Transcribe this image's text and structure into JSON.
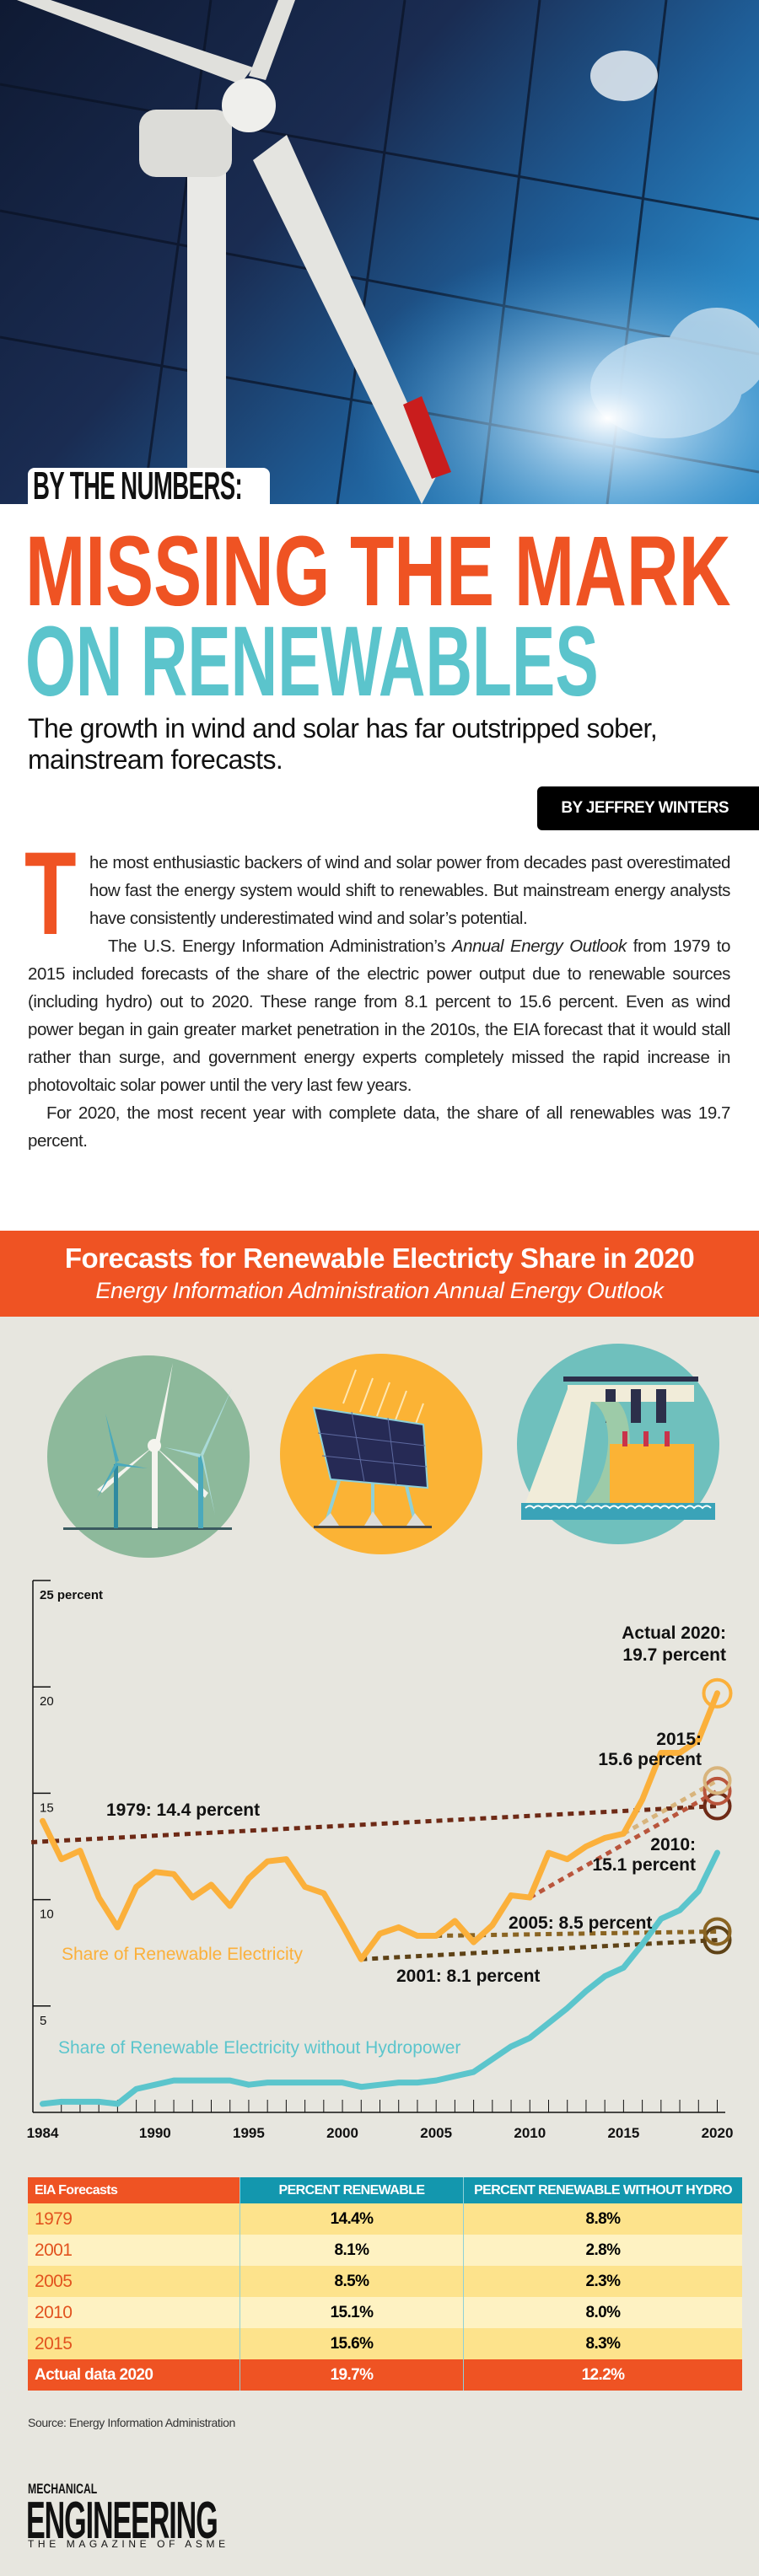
{
  "header": {
    "section_tab": "BY THE NUMBERS:",
    "title_line1": "MISSING THE MARK",
    "title_line2": "ON RENEWABLES",
    "subtitle": "The growth in wind and solar has far outstripped sober, mainstream forecasts.",
    "byline": "BY JEFFREY WINTERS"
  },
  "body": {
    "drop_cap": "T",
    "p1": "he most enthusiastic backers of wind and solar power from decades past overestimated how fast the energy system would shift to renewables. But mainstream energy analysts have consistently underestimated wind and solar’s potential.",
    "p2_a": "The U.S. Energy Information Administration’s ",
    "p2_italic": "Annual Energy Outlook",
    "p2_b": " from 1979 to 2015 included forecasts of the share of the electric power output due to renewable sources (including hydro) out to 2020. These range from 8.1 percent to 15.6 percent. Even as wind power began in gain greater market penetration in the 2010s, the EIA forecast that it would stall rather than surge, and government energy experts completely missed the rapid increase in photovoltaic solar power until the very last few years.",
    "p3": "For 2020, the most recent year with complete data, the share of all renewables was 19.7 percent."
  },
  "infographic": {
    "title": "Forecasts for Renewable Electricty Share in 2020",
    "subtitle": "Energy Information Administration Annual Energy Outlook",
    "icons": [
      "wind-turbines-icon",
      "solar-panel-icon",
      "hydro-dam-icon"
    ]
  },
  "chart_data": {
    "type": "line",
    "title": "Forecasts for Renewable Electricty Share in 2020",
    "ylabel": "percent",
    "xlim": [
      1984,
      2020
    ],
    "ylim": [
      0,
      25
    ],
    "y_ticks": [
      5,
      10,
      15,
      20,
      25
    ],
    "y_tick_labels": [
      "5",
      "10",
      "15",
      "20",
      "25 percent"
    ],
    "x_ticks": [
      1984,
      1990,
      1995,
      2000,
      2005,
      2010,
      2015,
      2020
    ],
    "x_tick_labels": [
      "1984",
      "1990",
      "1995",
      "2000",
      "2005",
      "2010",
      "2015",
      "2020"
    ],
    "grid": false,
    "series": [
      {
        "name": "Share of Renewable Electricity",
        "color": "#fbb03b",
        "x": [
          1984,
          1985,
          1986,
          1987,
          1988,
          1989,
          1990,
          1991,
          1992,
          1993,
          1994,
          1995,
          1996,
          1997,
          1998,
          1999,
          2000,
          2001,
          2002,
          2003,
          2004,
          2005,
          2006,
          2007,
          2008,
          2009,
          2010,
          2011,
          2012,
          2013,
          2014,
          2015,
          2016,
          2017,
          2018,
          2019,
          2020
        ],
        "values": [
          13.7,
          11.9,
          12.3,
          10.1,
          8.7,
          10.6,
          11.3,
          11.2,
          10.1,
          10.7,
          9.7,
          11.0,
          11.8,
          11.9,
          10.6,
          10.3,
          8.8,
          7.2,
          8.4,
          8.7,
          8.3,
          8.3,
          9.0,
          8.0,
          8.8,
          10.2,
          10.1,
          12.2,
          11.9,
          12.5,
          12.9,
          13.1,
          14.7,
          16.9,
          16.9,
          17.5,
          19.7
        ]
      },
      {
        "name": "Share of Renewable Electricity without Hydropower",
        "color": "#5bc5cc",
        "x": [
          1984,
          1985,
          1986,
          1987,
          1988,
          1989,
          1990,
          1991,
          1992,
          1993,
          1994,
          1995,
          1996,
          1997,
          1998,
          1999,
          2000,
          2001,
          2002,
          2003,
          2004,
          2005,
          2006,
          2007,
          2008,
          2009,
          2010,
          2011,
          2012,
          2013,
          2014,
          2015,
          2016,
          2017,
          2018,
          2019,
          2020
        ],
        "values": [
          0.4,
          0.5,
          0.5,
          0.5,
          0.4,
          1.1,
          1.3,
          1.5,
          1.5,
          1.5,
          1.5,
          1.3,
          1.4,
          1.4,
          1.4,
          1.4,
          1.4,
          1.2,
          1.3,
          1.4,
          1.4,
          1.5,
          1.7,
          1.9,
          2.5,
          3.1,
          3.5,
          4.2,
          4.9,
          5.7,
          6.4,
          6.8,
          7.9,
          9.1,
          9.5,
          10.4,
          12.2
        ]
      }
    ],
    "forecasts": [
      {
        "year": 1979,
        "from": [
          1983.4,
          12.7
        ],
        "value_2020": 14.4,
        "color": "#6e2a16",
        "label": [
          "1979: 14.4 percent"
        ]
      },
      {
        "year": 2001,
        "from": [
          2001,
          7.2
        ],
        "value_2020": 8.1,
        "color": "#5e4216",
        "label": [
          "2001: 8.1 percent"
        ]
      },
      {
        "year": 2005,
        "from": [
          2005,
          8.3
        ],
        "value_2020": 8.5,
        "color": "#8a6422",
        "label": [
          "2005: 8.5 percent"
        ]
      },
      {
        "year": 2010,
        "from": [
          2010,
          10.1
        ],
        "value_2020": 15.1,
        "color": "#b9553c",
        "label": [
          "2010:",
          "15.1 percent"
        ]
      },
      {
        "year": 2015,
        "from": [
          2015,
          13.1
        ],
        "value_2020": 15.6,
        "color": "#d8b47c",
        "label": [
          "2015:",
          "15.6 percent"
        ]
      }
    ],
    "actual": {
      "value_2020": 19.7,
      "color": "#fbb03b",
      "label": [
        "Actual 2020:",
        "19.7 percent"
      ]
    }
  },
  "table": {
    "headers": [
      "EIA Forecasts",
      "PERCENT RENEWABLE",
      "PERCENT RENEWABLE WITHOUT HYDRO"
    ],
    "rows": [
      [
        "1979",
        "14.4%",
        "8.8%"
      ],
      [
        "2001",
        "8.1%",
        "2.8%"
      ],
      [
        "2005",
        "8.5%",
        "2.3%"
      ],
      [
        "2010",
        "15.1%",
        "8.0%"
      ],
      [
        "2015",
        "15.6%",
        "8.3%"
      ]
    ],
    "actual_row": [
      "Actual data 2020",
      "19.7%",
      "12.2%"
    ]
  },
  "source": "Source: Energy Information Administration",
  "logo": {
    "line1": "MECHANICAL",
    "line2": "ENGINEERING",
    "line3": "THE MAGAZINE OF ASME"
  },
  "colors": {
    "orange": "#ef5323",
    "teal": "#5bc4cc",
    "table_header_teal": "#1397ae",
    "background": "#e7e6df"
  }
}
